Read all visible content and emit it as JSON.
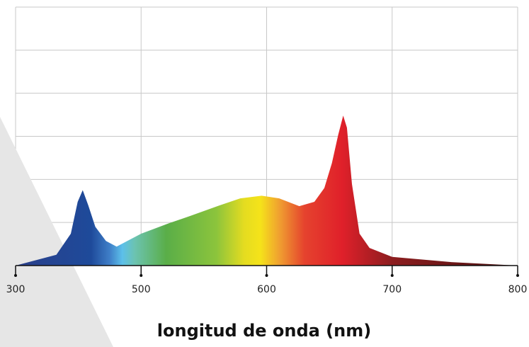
{
  "chart_data": {
    "type": "area",
    "xlabel": "longitud de onda (nm)",
    "x": [
      300,
      365,
      388,
      399,
      407,
      416,
      427,
      444,
      461,
      478,
      500,
      522,
      539,
      562,
      579,
      596,
      610,
      626,
      638,
      646,
      652,
      657,
      661,
      664,
      668,
      674,
      682,
      700,
      747,
      800
    ],
    "y": [
      0,
      0.25,
      0.74,
      1.48,
      1.75,
      1.39,
      0.9,
      0.57,
      0.44,
      0.57,
      0.74,
      0.98,
      1.15,
      1.39,
      1.56,
      1.62,
      1.56,
      1.38,
      1.48,
      1.8,
      2.38,
      3.03,
      3.48,
      3.2,
      1.89,
      0.74,
      0.41,
      0.2,
      0.08,
      0
    ],
    "xlim": [
      300,
      800
    ],
    "xticks": [
      300,
      500,
      600,
      700,
      800
    ],
    "ylim": [
      0,
      6
    ],
    "yticks": [
      0,
      1,
      2,
      3,
      4,
      5,
      6
    ],
    "ytick_labels": false,
    "grid": true,
    "gradient": [
      {
        "x": 300,
        "color": "#2a3f8a"
      },
      {
        "x": 420,
        "color": "#1e4a9a"
      },
      {
        "x": 450,
        "color": "#3f7fc8"
      },
      {
        "x": 470,
        "color": "#5cc0ea"
      },
      {
        "x": 490,
        "color": "#6cc3b0"
      },
      {
        "x": 520,
        "color": "#5aae48"
      },
      {
        "x": 560,
        "color": "#8cc43c"
      },
      {
        "x": 582,
        "color": "#e4dc20"
      },
      {
        "x": 595,
        "color": "#f5e31a"
      },
      {
        "x": 610,
        "color": "#f0a030"
      },
      {
        "x": 630,
        "color": "#e5432e"
      },
      {
        "x": 660,
        "color": "#e0202a"
      },
      {
        "x": 700,
        "color": "#8c1d1f"
      },
      {
        "x": 800,
        "color": "#4a1010"
      }
    ]
  }
}
